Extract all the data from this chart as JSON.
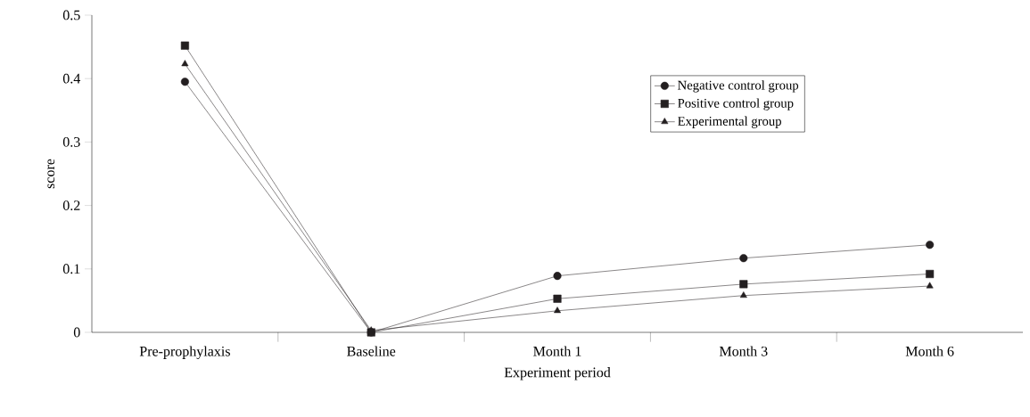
{
  "chart_data": {
    "type": "line",
    "xlabel": "Experiment period",
    "ylabel": "score",
    "categories": [
      "Pre-prophylaxis",
      "Baseline",
      "Month 1",
      "Month 3",
      "Month 6"
    ],
    "series": [
      {
        "name": "Negative control group",
        "color": "#231f20",
        "marker": "circle",
        "values": [
          0.395,
          0.0,
          0.089,
          0.117,
          0.138
        ]
      },
      {
        "name": "Positive control group",
        "color": "#231f20",
        "marker": "square",
        "values": [
          0.452,
          0.0,
          0.053,
          0.076,
          0.092
        ]
      },
      {
        "name": "Experimental group",
        "color": "#231f20",
        "marker": "triangle",
        "values": [
          0.423,
          0.003,
          0.034,
          0.058,
          0.073
        ]
      }
    ],
    "ylim": [
      0,
      0.5
    ],
    "yticks": [
      0,
      0.1,
      0.2,
      0.3,
      0.4,
      0.5
    ],
    "grid": false,
    "legend": "top right",
    "line_style": "solid"
  }
}
